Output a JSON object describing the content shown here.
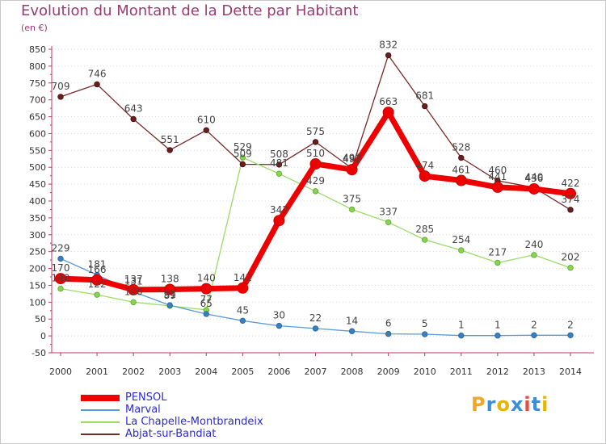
{
  "chart": {
    "title": "Evolution du Montant de la Dette par Habitant",
    "subtitle": "(en €)"
  },
  "chart_data": {
    "type": "line",
    "title": "Evolution du Montant de la Dette par Habitant",
    "subtitle": "(en €)",
    "xlabel": "",
    "ylabel": "",
    "ylim": [
      -50,
      850
    ],
    "yticks": [
      -50,
      0,
      50,
      100,
      150,
      200,
      250,
      300,
      350,
      400,
      450,
      500,
      550,
      600,
      650,
      700,
      750,
      800,
      850
    ],
    "grid": "horizontal dotted",
    "legend_position": "bottom-left",
    "categories": [
      "2000",
      "2001",
      "2002",
      "2003",
      "2004",
      "2005",
      "2006",
      "2007",
      "2008",
      "2009",
      "2010",
      "2011",
      "2012",
      "2013",
      "2014"
    ],
    "series": [
      {
        "name": "PENSOL",
        "color": "#ee0000",
        "values": [
          170,
          166,
          137,
          138,
          140,
          142,
          342,
          510,
          493,
          663,
          474,
          461,
          441,
          436,
          422
        ]
      },
      {
        "name": "Marval",
        "color": "#5b9bd5",
        "values": [
          229,
          181,
          131,
          91,
          65,
          45,
          30,
          22,
          14,
          6,
          5,
          1,
          1,
          2,
          2
        ]
      },
      {
        "name": "La Chapelle-Montbrandeix",
        "color": "#99dd66",
        "values": [
          140,
          122,
          100,
          89,
          77,
          529,
          481,
          429,
          375,
          337,
          285,
          254,
          217,
          240,
          202
        ]
      },
      {
        "name": "Abjat-sur-Bandiat",
        "color": "#7b2a2a",
        "values": [
          709,
          746,
          643,
          551,
          610,
          509,
          508,
          575,
          497,
          832,
          681,
          528,
          460,
          440,
          374
        ]
      }
    ]
  },
  "logo": {
    "letters": [
      "P",
      "r",
      "o",
      "x",
      "i",
      "t",
      "i"
    ],
    "colors": [
      "#f5a623",
      "#3b8fd9",
      "#e8b400",
      "#3b8fd9",
      "#e84c3d",
      "#3b8fd9",
      "#e8b400"
    ]
  }
}
